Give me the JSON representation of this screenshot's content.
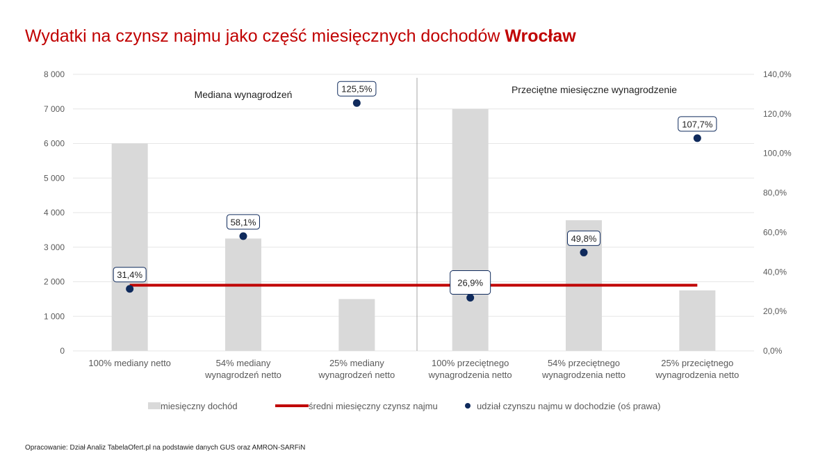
{
  "title_main": "Wydatki na czynsz najmu jako część miesięcznych dochodów",
  "title_city": "Wrocław",
  "footer": "Opracowanie: Dział Analiz TabelaOfert.pl na podstawie danych GUS oraz AMRON-SARFiN",
  "colors": {
    "accent": "#c00000",
    "bar": "#d9d9d9",
    "dot": "#0f2a5c",
    "grid": "#e6e6e6"
  },
  "chart_data": {
    "type": "bar",
    "categories": [
      [
        "100% mediany netto"
      ],
      [
        "54% mediany",
        "wynagrodzeń netto"
      ],
      [
        "25% mediany",
        "wynagrodzeń netto"
      ],
      [
        "100% przeciętnego",
        "wynagrodzenia netto"
      ],
      [
        "54% przeciętnego",
        "wynagrodzenia netto"
      ],
      [
        "25% przeciętnego",
        "wynagrodzenia netto"
      ]
    ],
    "series": [
      {
        "name": "miesięczny dochód",
        "type": "bar",
        "axis": "left",
        "values": [
          6000,
          3250,
          1500,
          7000,
          3780,
          1750
        ]
      },
      {
        "name": "średni miesięczny czynsz najmu",
        "type": "line",
        "axis": "left",
        "values": [
          1900,
          1900,
          1900,
          1900,
          1900,
          1900
        ]
      },
      {
        "name": "udział czynszu najmu w dochodzie (oś prawa)",
        "type": "scatter",
        "axis": "right",
        "values": [
          31.4,
          58.1,
          125.5,
          26.9,
          49.8,
          107.7
        ],
        "labels": [
          "31,4%",
          "58,1%",
          "125,5%",
          "26,9%",
          "49,8%",
          "107,7%"
        ]
      }
    ],
    "ylim_left": [
      0,
      8000
    ],
    "yticks_left": [
      "0",
      "1 000",
      "2 000",
      "3 000",
      "4 000",
      "5 000",
      "6 000",
      "7 000",
      "8 000"
    ],
    "ylim_right": [
      0,
      140
    ],
    "yticks_right": [
      "0,0%",
      "20,0%",
      "40,0%",
      "60,0%",
      "80,0%",
      "100,0%",
      "120,0%",
      "140,0%"
    ],
    "group_labels": [
      "Mediana wynagrodzeń",
      "Przeciętne miesięczne wynagrodzenie"
    ],
    "grid": true,
    "legend_position": "bottom"
  }
}
